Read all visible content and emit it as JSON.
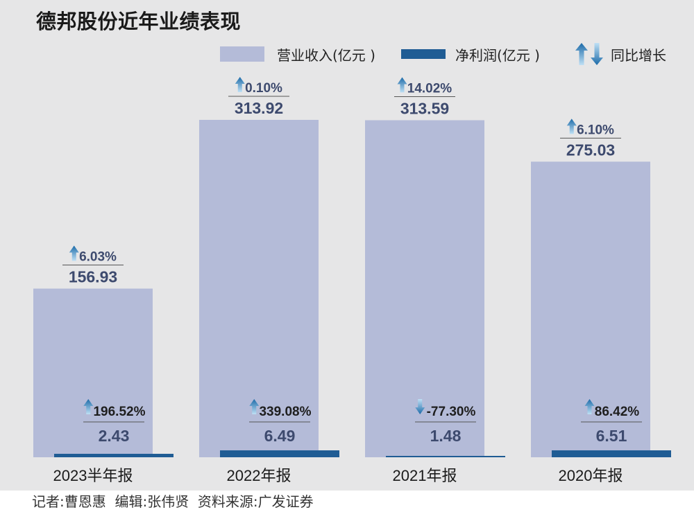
{
  "title": "德邦股份近年业绩表现",
  "legend": {
    "revenue": "营业收入(亿元 )",
    "net_profit": "净利润(亿元 )",
    "yoy": "同比增长"
  },
  "credit": "记者:曹恩惠  编辑:张伟贤  资料来源:广发证券",
  "colors": {
    "revenue_bar": "#b4bbd8",
    "net_profit_bar": "#1f5c94",
    "label_text": "#3d4a6e",
    "arrow": "#2f7cb8"
  },
  "chart_data": {
    "type": "bar",
    "title": "德邦股份近年业绩表现",
    "categories": [
      "2023半年报",
      "2022年报",
      "2021年报",
      "2020年报"
    ],
    "series": [
      {
        "name": "营业收入(亿元 )",
        "values": [
          156.93,
          313.92,
          313.59,
          275.03
        ],
        "labels": [
          "156.93",
          "313.92",
          "313.59",
          "275.03"
        ],
        "yoy": [
          "6.03%",
          "0.10%",
          "14.02%",
          "6.10%"
        ],
        "yoy_dir": [
          "up",
          "up",
          "up",
          "up"
        ]
      },
      {
        "name": "净利润(亿元 )",
        "values": [
          2.43,
          6.49,
          1.48,
          6.51
        ],
        "labels": [
          "2.43",
          "6.49",
          "1.48",
          "6.51"
        ],
        "yoy": [
          "196.52%",
          "339.08%",
          "-77.30%",
          "86.42%"
        ],
        "yoy_dir": [
          "up",
          "up",
          "down",
          "up"
        ]
      }
    ],
    "grid": false,
    "legend_position": "top-right"
  }
}
